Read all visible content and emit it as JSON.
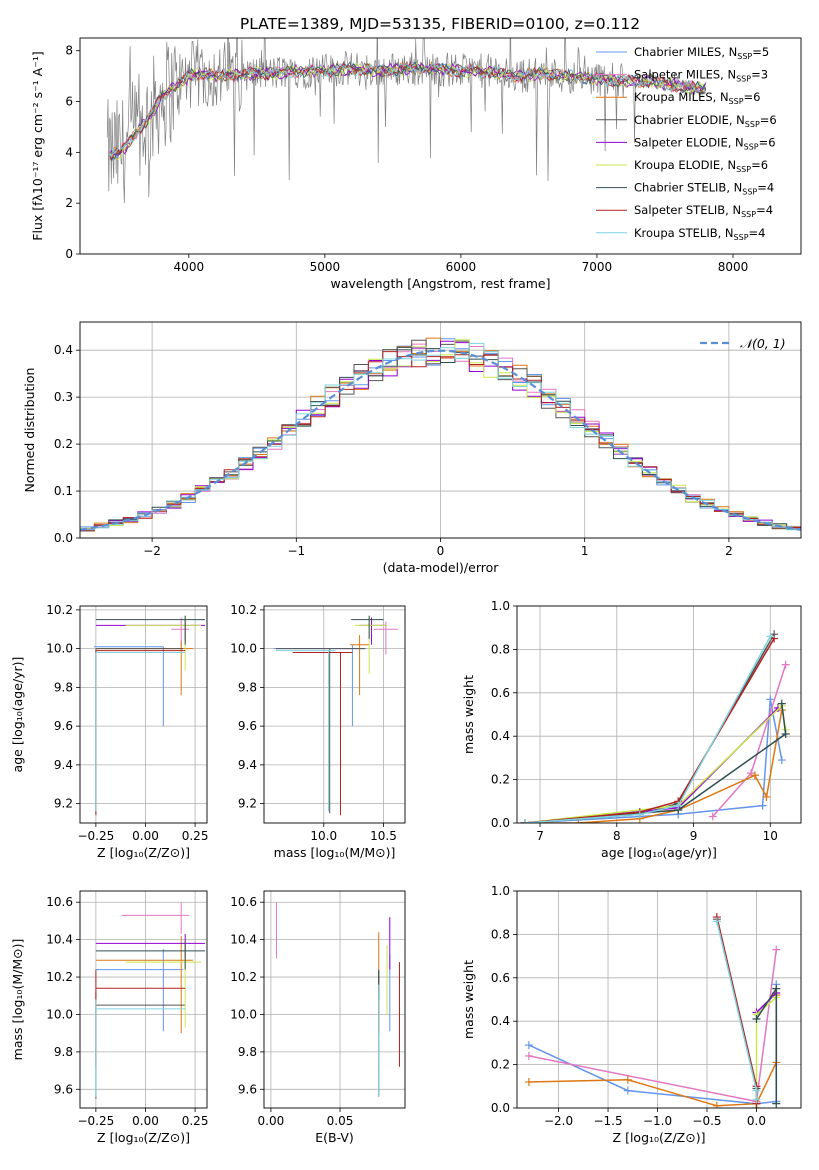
{
  "figure_title": "PLATE=1389, MJD=53135, FIBERID=0100, z=0.112",
  "colors": [
    "#6495ed",
    "#e377c2",
    "#dd7711",
    "#555555",
    "#9400d3",
    "#c8e84d",
    "#2f4f4f",
    "#b22222",
    "#7fd4dd"
  ],
  "chart_data": [
    {
      "id": "spectrum",
      "type": "line",
      "title": "PLATE=1389, MJD=53135, FIBERID=0100, z=0.112",
      "xlabel": "wavelength [Angstrom, rest frame]",
      "ylabel": "Flux [fλ10⁻¹⁷ erg cm⁻² s⁻¹ A⁻¹]",
      "xlim": [
        3200,
        8500
      ],
      "ylim": [
        0,
        8.5
      ],
      "xticks": [
        "4000",
        "5000",
        "6000",
        "7000",
        "8000"
      ],
      "yticks": [
        "0",
        "2",
        "4",
        "6",
        "8"
      ],
      "legend_position": "right",
      "grid": false,
      "observed_continuum": [
        [
          3400,
          3.9
        ],
        [
          3500,
          4.0
        ],
        [
          3600,
          4.7
        ],
        [
          3700,
          5.3
        ],
        [
          3800,
          6.2
        ],
        [
          3900,
          6.6
        ],
        [
          4000,
          7.0
        ],
        [
          4100,
          7.1
        ],
        [
          4200,
          7.0
        ],
        [
          4400,
          7.1
        ],
        [
          4600,
          7.1
        ],
        [
          4800,
          7.2
        ],
        [
          5000,
          7.2
        ],
        [
          5200,
          7.3
        ],
        [
          5400,
          7.2
        ],
        [
          5600,
          7.3
        ],
        [
          5800,
          7.3
        ],
        [
          6000,
          7.2
        ],
        [
          6200,
          7.2
        ],
        [
          6400,
          7.0
        ],
        [
          6600,
          7.1
        ],
        [
          6800,
          7.0
        ],
        [
          7000,
          6.9
        ],
        [
          7200,
          6.8
        ],
        [
          7400,
          6.8
        ],
        [
          7600,
          6.6
        ],
        [
          7800,
          6.5
        ]
      ],
      "series": [
        {
          "name": "Chabrier MILES, N_SSP=5",
          "label_main": "Chabrier MILES, N",
          "label_sub": "SSP",
          "label_tail": "=5",
          "color": "#6495ed"
        },
        {
          "name": "Salpeter MILES, N_SSP=3",
          "label_main": "Salpeter MILES, N",
          "label_sub": "SSP",
          "label_tail": "=3",
          "color": "#e377c2"
        },
        {
          "name": "Kroupa MILES, N_SSP=6",
          "label_main": "Kroupa MILES, N",
          "label_sub": "SSP",
          "label_tail": "=6",
          "color": "#dd7711"
        },
        {
          "name": "Chabrier ELODIE, N_SSP=6",
          "label_main": "Chabrier ELODIE, N",
          "label_sub": "SSP",
          "label_tail": "=6",
          "color": "#555555"
        },
        {
          "name": "Salpeter ELODIE, N_SSP=6",
          "label_main": "Salpeter ELODIE, N",
          "label_sub": "SSP",
          "label_tail": "=6",
          "color": "#9400d3"
        },
        {
          "name": "Kroupa ELODIE, N_SSP=6",
          "label_main": "Kroupa ELODIE, N",
          "label_sub": "SSP",
          "label_tail": "=6",
          "color": "#c8e84d"
        },
        {
          "name": "Chabrier STELIB, N_SSP=4",
          "label_main": "Chabrier STELIB, N",
          "label_sub": "SSP",
          "label_tail": "=4",
          "color": "#2f4f4f"
        },
        {
          "name": "Salpeter STELIB, N_SSP=4",
          "label_main": "Salpeter STELIB, N",
          "label_sub": "SSP",
          "label_tail": "=4",
          "color": "#b22222"
        },
        {
          "name": "Kroupa STELIB, N_SSP=4",
          "label_main": "Kroupa STELIB, N",
          "label_sub": "SSP",
          "label_tail": "=4",
          "color": "#7fd4dd"
        }
      ]
    },
    {
      "id": "residuals",
      "type": "histogram",
      "xlabel": "(data-model)/error",
      "ylabel": "Normed distribution",
      "xlim": [
        -2.5,
        2.5
      ],
      "ylim": [
        0,
        0.46
      ],
      "xticks": [
        "−2",
        "−1",
        "0",
        "1",
        "2"
      ],
      "yticks": [
        "0.0",
        "0.1",
        "0.2",
        "0.3",
        "0.4"
      ],
      "grid": true,
      "bin_width": 0.1,
      "reference_curve": {
        "name": "N(0,1)",
        "label": "𝒩(0, 1)",
        "mean": 0,
        "sigma": 1,
        "color": "#5a8fd6"
      },
      "legend_position": "upper right"
    },
    {
      "id": "age_vs_Z",
      "type": "errorbar",
      "xlabel": "Z [log₁₀(Z/Z⊙)]",
      "ylabel": "age  [log₁₀(age/yr)]",
      "xlim": [
        -0.33,
        0.31
      ],
      "ylim": [
        9.1,
        10.22
      ],
      "xticks": [
        "−0.25",
        "0.00",
        "0.25"
      ],
      "yticks": [
        "9.2",
        "9.4",
        "9.6",
        "9.8",
        "10.0",
        "10.2"
      ],
      "points": [
        {
          "series": "Chabrier MILES",
          "x": 0.09,
          "xerr": [
            0.35,
            0
          ],
          "y": 10.01,
          "yerr": [
            0.41,
            0
          ]
        },
        {
          "series": "Salpeter MILES",
          "x": 0.18,
          "xerr": [
            0.05,
            0.04
          ],
          "y": 10.1,
          "yerr": [
            0.09,
            0.06
          ]
        },
        {
          "series": "Kroupa MILES",
          "x": 0.18,
          "xerr": [
            0.43,
            0.06
          ],
          "y": 10.0,
          "yerr": [
            0.24,
            0.04
          ]
        },
        {
          "series": "Chabrier ELODIE",
          "x": -0.25,
          "xerr": [
            0,
            0.44
          ],
          "y": 10.0,
          "yerr": [
            0.85,
            0
          ]
        },
        {
          "series": "Salpeter ELODIE",
          "x": 0.2,
          "xerr": [
            0.45,
            0.1
          ],
          "y": 10.12,
          "yerr": [
            0.08,
            0.03
          ]
        },
        {
          "series": "Kroupa ELODIE",
          "x": 0.2,
          "xerr": [
            0.3,
            0.08
          ],
          "y": 10.12,
          "yerr": [
            0.23,
            0.05
          ]
        },
        {
          "series": "Chabrier STELIB",
          "x": 0.2,
          "xerr": [
            0.45,
            0.1
          ],
          "y": 10.15,
          "yerr": [
            0.13,
            0.02
          ]
        },
        {
          "series": "Salpeter STELIB",
          "x": -0.25,
          "xerr": [
            0,
            0.45
          ],
          "y": 9.99,
          "yerr": [
            0.85,
            0
          ]
        },
        {
          "series": "Kroupa STELIB",
          "x": -0.25,
          "xerr": [
            0,
            0.45
          ],
          "y": 9.98,
          "yerr": [
            0.82,
            0
          ]
        }
      ]
    },
    {
      "id": "age_vs_mass",
      "type": "errorbar",
      "xlabel": "mass [log₁₀(M/M⊙)]",
      "ylabel": "",
      "xlim": [
        9.5,
        10.68
      ],
      "ylim": [
        9.1,
        10.22
      ],
      "xticks": [
        "10.0",
        "10.5"
      ],
      "yticks": [
        "9.2",
        "9.4",
        "9.6",
        "9.8",
        "10.0",
        "10.2"
      ],
      "points": [
        {
          "series": "Chabrier MILES",
          "x": 10.24,
          "xerr": [
            0.66,
            0.1
          ],
          "y": 10.0,
          "yerr": [
            0.4,
            0.02
          ]
        },
        {
          "series": "Salpeter MILES",
          "x": 10.52,
          "xerr": [
            0.1,
            0.1
          ],
          "y": 10.1,
          "yerr": [
            0.13,
            0.04
          ]
        },
        {
          "series": "Kroupa MILES",
          "x": 10.3,
          "xerr": [
            0.08,
            0.08
          ],
          "y": 10.02,
          "yerr": [
            0.26,
            0.05
          ]
        },
        {
          "series": "Chabrier ELODIE",
          "x": 10.05,
          "xerr": [
            0.45,
            0.3
          ],
          "y": 10.0,
          "yerr": [
            0.85,
            0
          ]
        },
        {
          "series": "Salpeter ELODIE",
          "x": 10.4,
          "xerr": [
            0.1,
            0.12
          ],
          "y": 10.12,
          "yerr": [
            0.1,
            0.04
          ]
        },
        {
          "series": "Kroupa ELODIE",
          "x": 10.38,
          "xerr": [
            0.12,
            0.15
          ],
          "y": 10.12,
          "yerr": [
            0.25,
            0.04
          ]
        },
        {
          "series": "Chabrier STELIB",
          "x": 10.38,
          "xerr": [
            0.15,
            0.12
          ],
          "y": 10.15,
          "yerr": [
            0.1,
            0.02
          ]
        },
        {
          "series": "Salpeter STELIB",
          "x": 10.14,
          "xerr": [
            0.4,
            0.1
          ],
          "y": 9.98,
          "yerr": [
            0.84,
            0
          ]
        },
        {
          "series": "Kroupa STELIB",
          "x": 10.04,
          "xerr": [
            0.44,
            0.06
          ],
          "y": 9.99,
          "yerr": [
            0.83,
            0
          ]
        }
      ]
    },
    {
      "id": "weight_vs_age",
      "type": "line",
      "xlabel": "age  [log₁₀(age/yr)]",
      "ylabel": "mass weight",
      "xlim": [
        6.7,
        10.4
      ],
      "ylim": [
        0,
        1
      ],
      "xticks": [
        "7",
        "8",
        "9",
        "10"
      ],
      "yticks": [
        "0.0",
        "0.2",
        "0.4",
        "0.6",
        "0.8",
        "1.0"
      ],
      "grid": true,
      "series": [
        {
          "name": "Chabrier MILES",
          "x": [
            6.8,
            8.8,
            9.9,
            10.0,
            10.15
          ],
          "y": [
            0.0,
            0.04,
            0.08,
            0.57,
            0.29
          ]
        },
        {
          "name": "Salpeter MILES",
          "x": [
            9.25,
            9.75,
            10.2
          ],
          "y": [
            0.03,
            0.23,
            0.73
          ]
        },
        {
          "name": "Kroupa MILES",
          "x": [
            6.8,
            7.5,
            8.3,
            8.8,
            9.8,
            9.95,
            10.15
          ],
          "y": [
            0.0,
            0.0,
            0.02,
            0.06,
            0.22,
            0.12,
            0.52
          ]
        },
        {
          "name": "Chabrier ELODIE",
          "x": [
            6.8,
            8.3,
            8.8,
            10.05
          ],
          "y": [
            0.0,
            0.04,
            0.09,
            0.87
          ]
        },
        {
          "name": "Salpeter ELODIE",
          "x": [
            6.8,
            8.8,
            10.1
          ],
          "y": [
            0.0,
            0.07,
            0.53
          ]
        },
        {
          "name": "Kroupa ELODIE",
          "x": [
            6.8,
            8.8,
            10.15,
            10.2
          ],
          "y": [
            0.0,
            0.08,
            0.54,
            0.43
          ]
        },
        {
          "name": "Chabrier STELIB",
          "x": [
            6.8,
            8.8,
            10.2,
            10.15
          ],
          "y": [
            0.0,
            0.06,
            0.41,
            0.55
          ]
        },
        {
          "name": "Salpeter STELIB",
          "x": [
            6.8,
            8.3,
            8.8,
            10.05
          ],
          "y": [
            0.0,
            0.05,
            0.1,
            0.85
          ]
        },
        {
          "name": "Kroupa STELIB",
          "x": [
            6.8,
            8.3,
            8.8,
            10.0
          ],
          "y": [
            0.0,
            0.04,
            0.08,
            0.86
          ]
        }
      ]
    },
    {
      "id": "mass_vs_Z",
      "type": "errorbar",
      "xlabel": "Z [log₁₀(Z/Z⊙)]",
      "ylabel": "mass [log₁₀(M/M⊙)]",
      "xlim": [
        -0.33,
        0.31
      ],
      "ylim": [
        9.5,
        10.66
      ],
      "xticks": [
        "−0.25",
        "0.00",
        "0.25"
      ],
      "yticks": [
        "9.6",
        "9.8",
        "10.0",
        "10.2",
        "10.4",
        "10.6"
      ],
      "points": [
        {
          "series": "Chabrier MILES",
          "x": 0.09,
          "xerr": [
            0.34,
            0.1
          ],
          "y": 10.24,
          "yerr": [
            0.33,
            0.11
          ]
        },
        {
          "series": "Salpeter MILES",
          "x": 0.18,
          "xerr": [
            0.3,
            0.04
          ],
          "y": 10.53,
          "yerr": [
            0.1,
            0.07
          ]
        },
        {
          "series": "Kroupa MILES",
          "x": 0.18,
          "xerr": [
            0.43,
            0.06
          ],
          "y": 10.29,
          "yerr": [
            0.39,
            0.13
          ]
        },
        {
          "series": "Chabrier ELODIE",
          "x": -0.25,
          "xerr": [
            0,
            0.45
          ],
          "y": 10.05,
          "yerr": [
            0.5,
            0.07
          ]
        },
        {
          "series": "Salpeter ELODIE",
          "x": 0.2,
          "xerr": [
            0.45,
            0.1
          ],
          "y": 10.38,
          "yerr": [
            0.08,
            0.05
          ]
        },
        {
          "series": "Kroupa ELODIE",
          "x": 0.2,
          "xerr": [
            0.3,
            0.08
          ],
          "y": 10.28,
          "yerr": [
            0.35,
            0.1
          ]
        },
        {
          "series": "Chabrier STELIB",
          "x": 0.2,
          "xerr": [
            0.45,
            0.1
          ],
          "y": 10.34,
          "yerr": [
            0.1,
            0.05
          ]
        },
        {
          "series": "Salpeter STELIB",
          "x": -0.25,
          "xerr": [
            0,
            0.45
          ],
          "y": 10.14,
          "yerr": [
            0.42,
            0.1
          ]
        },
        {
          "series": "Kroupa STELIB",
          "x": -0.25,
          "xerr": [
            0,
            0.45
          ],
          "y": 10.03,
          "yerr": [
            0.47,
            0.05
          ]
        }
      ]
    },
    {
      "id": "mass_vs_ebv",
      "type": "errorbar",
      "xlabel": "E(B-V)",
      "ylabel": "",
      "xlim": [
        -0.005,
        0.097
      ],
      "ylim": [
        9.5,
        10.66
      ],
      "xticks": [
        "0.00",
        "0.05"
      ],
      "yticks": [
        "9.6",
        "9.8",
        "10.0",
        "10.2",
        "10.4",
        "10.6"
      ],
      "points": [
        {
          "series": "Chabrier MILES",
          "x": 0.086,
          "y": 10.22,
          "yerr": [
            0.31,
            0.1
          ]
        },
        {
          "series": "Salpeter MILES",
          "x": 0.004,
          "y": 10.5,
          "yerr": [
            0.2,
            0.1
          ]
        },
        {
          "series": "Kroupa MILES",
          "x": 0.078,
          "y": 10.28,
          "yerr": [
            0.38,
            0.16
          ]
        },
        {
          "series": "Chabrier ELODIE",
          "x": 0.078,
          "y": 10.05,
          "yerr": [
            0.49,
            0.18
          ]
        },
        {
          "series": "Salpeter ELODIE",
          "x": 0.086,
          "y": 10.38,
          "yerr": [
            0.14,
            0.14
          ]
        },
        {
          "series": "Kroupa ELODIE",
          "x": 0.084,
          "y": 10.27,
          "yerr": [
            0.27,
            0.1
          ]
        },
        {
          "series": "Chabrier STELIB",
          "x": 0.078,
          "y": 10.2,
          "yerr": [
            0.12,
            0.04
          ]
        },
        {
          "series": "Salpeter STELIB",
          "x": 0.093,
          "y": 10.0,
          "yerr": [
            0.28,
            0.28
          ]
        },
        {
          "series": "Kroupa STELIB",
          "x": 0.078,
          "y": 9.96,
          "yerr": [
            0.4,
            0.2
          ]
        }
      ]
    },
    {
      "id": "weight_vs_Z",
      "type": "line",
      "xlabel": "Z [log₁₀(Z/Z⊙)]",
      "ylabel": "mass weight",
      "xlim": [
        -2.42,
        0.45
      ],
      "ylim": [
        0,
        1
      ],
      "xticks": [
        "−2.0",
        "−1.5",
        "−1.0",
        "−0.5",
        "0.0"
      ],
      "yticks": [
        "0.0",
        "0.2",
        "0.4",
        "0.6",
        "0.8",
        "1.0"
      ],
      "grid": true,
      "series": [
        {
          "name": "Chabrier MILES",
          "x": [
            -2.3,
            -1.3,
            0.0,
            0.2,
            0.2
          ],
          "y": [
            0.29,
            0.08,
            0.02,
            0.03,
            0.57
          ]
        },
        {
          "name": "Salpeter MILES",
          "x": [
            -2.3,
            0.0,
            0.2
          ],
          "y": [
            0.24,
            0.03,
            0.73
          ]
        },
        {
          "name": "Kroupa MILES",
          "x": [
            -2.3,
            -1.3,
            -0.4,
            0.0,
            0.2,
            0.2
          ],
          "y": [
            0.12,
            0.13,
            0.01,
            0.02,
            0.21,
            0.52
          ]
        },
        {
          "name": "Chabrier ELODIE",
          "x": [
            -0.4,
            0.0,
            0.0
          ],
          "y": [
            0.87,
            0.09,
            0.0
          ]
        },
        {
          "name": "Salpeter ELODIE",
          "x": [
            0.0,
            0.2
          ],
          "y": [
            0.44,
            0.53
          ]
        },
        {
          "name": "Kroupa ELODIE",
          "x": [
            0.0,
            0.0,
            0.2
          ],
          "y": [
            0.0,
            0.43,
            0.51
          ]
        },
        {
          "name": "Chabrier STELIB",
          "x": [
            0.0,
            0.2,
            0.2
          ],
          "y": [
            0.41,
            0.55,
            0.02
          ]
        },
        {
          "name": "Salpeter STELIB",
          "x": [
            -0.4,
            0.0,
            0.0
          ],
          "y": [
            0.88,
            0.1,
            0.02
          ]
        },
        {
          "name": "Kroupa STELIB",
          "x": [
            -0.4,
            0.0,
            0.0
          ],
          "y": [
            0.86,
            0.08,
            0.04
          ]
        }
      ]
    }
  ]
}
